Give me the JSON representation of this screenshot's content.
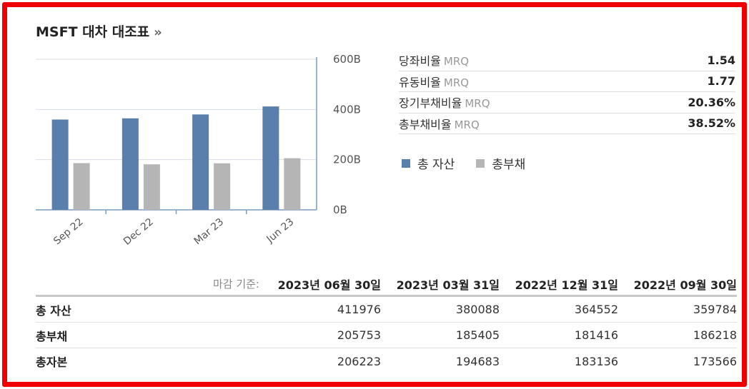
{
  "header": {
    "title": "MSFT 대차 대조표",
    "more_glyph": "»"
  },
  "chart_data": {
    "type": "bar",
    "categories": [
      "Sep 22",
      "Dec 22",
      "Mar 23",
      "Jun 23"
    ],
    "series": [
      {
        "name": "총 자산",
        "color": "#5b7fac",
        "values": [
          359784,
          364552,
          380088,
          411976
        ]
      },
      {
        "name": "총부채",
        "color": "#b5b5b5",
        "values": [
          186218,
          181416,
          185405,
          205753
        ]
      }
    ],
    "y_tick_labels": [
      "600B",
      "400B",
      "200B",
      "0B"
    ],
    "y_ticks": [
      600000,
      400000,
      200000,
      0
    ],
    "ylim": [
      0,
      600000
    ],
    "grid": true,
    "y_axis_side": "right"
  },
  "ratios": [
    {
      "label": "당좌비율",
      "suffix": "MRQ",
      "value": "1.54"
    },
    {
      "label": "유동비율",
      "suffix": "MRQ",
      "value": "1.77"
    },
    {
      "label": "장기부채비율",
      "suffix": "MRQ",
      "value": "20.36%"
    },
    {
      "label": "총부채비율",
      "suffix": "MRQ",
      "value": "38.52%"
    }
  ],
  "legend": [
    {
      "label": "총 자산",
      "color": "#5b7fac"
    },
    {
      "label": "총부채",
      "color": "#b5b5b5"
    }
  ],
  "table": {
    "basis_label": "마감 기준:",
    "dates": [
      "2023년 06월 30일",
      "2023년 03월 31일",
      "2022년 12월 31일",
      "2022년 09월 30일"
    ],
    "rows": [
      {
        "label": "총 자산",
        "values": [
          "411976",
          "380088",
          "364552",
          "359784"
        ]
      },
      {
        "label": "총부채",
        "values": [
          "205753",
          "185405",
          "181416",
          "186218"
        ]
      },
      {
        "label": "총자본",
        "values": [
          "206223",
          "194683",
          "183136",
          "173566"
        ]
      }
    ]
  }
}
